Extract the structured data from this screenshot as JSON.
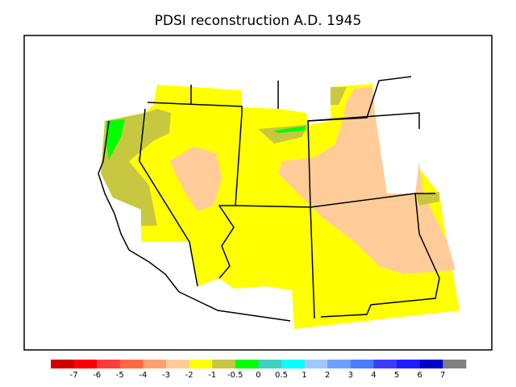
{
  "title": "PDSI reconstruction A.D. 1945",
  "colorbar": {
    "colors": [
      "#d00000",
      "#ff0000",
      "#ff3c3c",
      "#ff6a40",
      "#ffa070",
      "#ffcc99",
      "#ffff00",
      "#c8c840",
      "#00ff00",
      "#40d0c0",
      "#00ffff",
      "#a0c8ff",
      "#6ea0ff",
      "#4b7dff",
      "#3c3cff",
      "#1e1eff",
      "#0000cc",
      "#808080"
    ],
    "labels": [
      -7,
      -6,
      -5,
      -4,
      -3,
      -2,
      -1,
      -0.5,
      0,
      0.5,
      1,
      2,
      3,
      4,
      5,
      6,
      7
    ]
  }
}
